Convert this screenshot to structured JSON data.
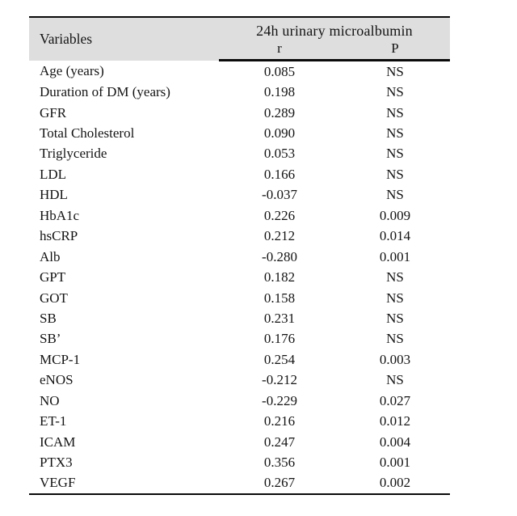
{
  "table": {
    "header": {
      "variables_label": "Variables",
      "group_label": "24h urinary microalbumin",
      "col_r_label": "r",
      "col_p_label": "P"
    },
    "rows": [
      {
        "variable": "Age (years)",
        "r": "0.085",
        "p": "NS"
      },
      {
        "variable": "Duration of DM (years)",
        "r": "0.198",
        "p": "NS"
      },
      {
        "variable": "GFR",
        "r": "0.289",
        "p": "NS"
      },
      {
        "variable": "Total Cholesterol",
        "r": "0.090",
        "p": "NS"
      },
      {
        "variable": "Triglyceride",
        "r": "0.053",
        "p": "NS"
      },
      {
        "variable": "LDL",
        "r": "0.166",
        "p": "NS"
      },
      {
        "variable": "HDL",
        "r": "-0.037",
        "p": "NS"
      },
      {
        "variable": "HbA1c",
        "r": "0.226",
        "p": "0.009"
      },
      {
        "variable": "hsCRP",
        "r": "0.212",
        "p": "0.014"
      },
      {
        "variable": "Alb",
        "r": "-0.280",
        "p": "0.001"
      },
      {
        "variable": "GPT",
        "r": "0.182",
        "p": "NS"
      },
      {
        "variable": "GOT",
        "r": "0.158",
        "p": "NS"
      },
      {
        "variable": "SB",
        "r": "0.231",
        "p": "NS"
      },
      {
        "variable": "SB’",
        "r": "0.176",
        "p": "NS"
      },
      {
        "variable": "MCP-1",
        "r": "0.254",
        "p": "0.003"
      },
      {
        "variable": "eNOS",
        "r": "-0.212",
        "p": "NS"
      },
      {
        "variable": "NO",
        "r": "-0.229",
        "p": "0.027"
      },
      {
        "variable": "ET-1",
        "r": "0.216",
        "p": "0.012"
      },
      {
        "variable": "ICAM",
        "r": "0.247",
        "p": "0.004"
      },
      {
        "variable": "PTX3",
        "r": "0.356",
        "p": "0.001"
      },
      {
        "variable": "VEGF",
        "r": "0.267",
        "p": "0.002"
      }
    ],
    "colors": {
      "header_bg": "#dedede",
      "rule": "#0a0a0a",
      "text": "#141414"
    }
  }
}
